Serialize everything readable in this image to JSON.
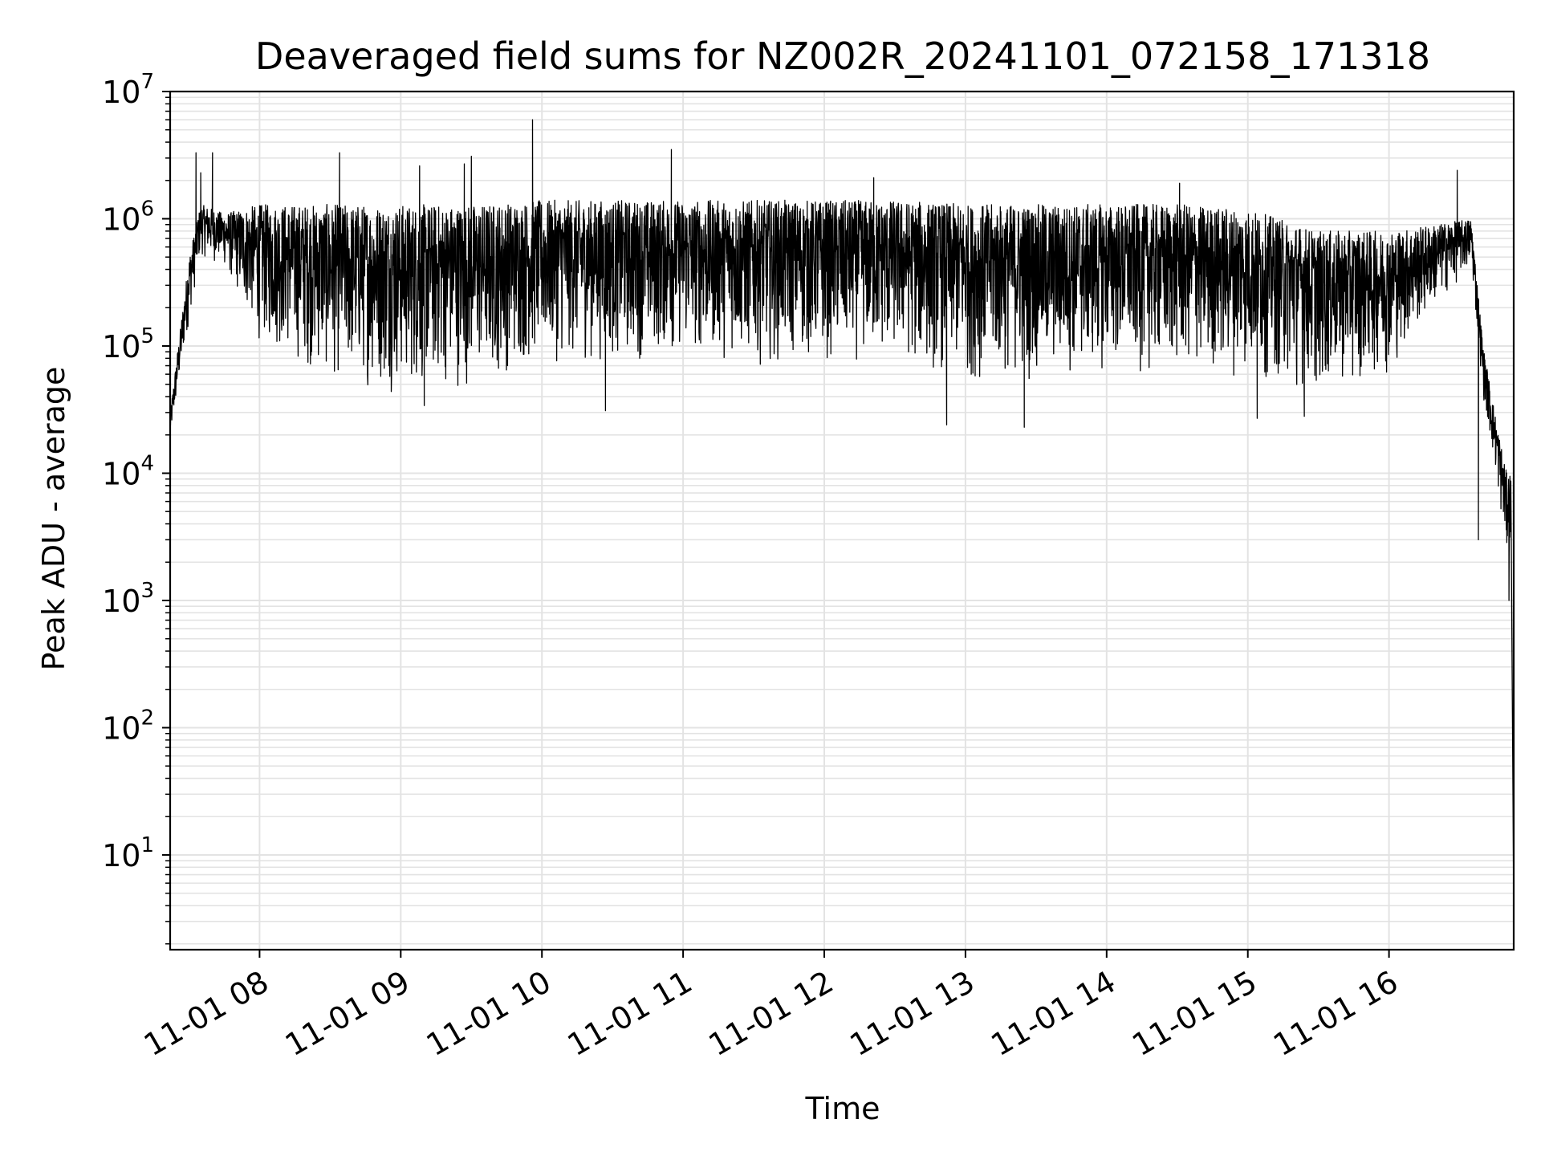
{
  "chart_data": {
    "type": "line",
    "title": "Deaveraged field sums for NZ002R_20241101_072158_171318",
    "xlabel": "Time",
    "ylabel": "Peak ADU - average",
    "yscale": "log",
    "ylim": [
      1.8,
      10000000
    ],
    "xlim": [
      "2024-11-01 07:22",
      "2024-11-01 16:53"
    ],
    "grid": true,
    "line_color": "#000000",
    "grid_color": "#e3e3e3",
    "x_ticks": [
      {
        "value": "2024-11-01 08:00",
        "label": "11-01 08"
      },
      {
        "value": "2024-11-01 09:00",
        "label": "11-01 09"
      },
      {
        "value": "2024-11-01 10:00",
        "label": "11-01 10"
      },
      {
        "value": "2024-11-01 11:00",
        "label": "11-01 11"
      },
      {
        "value": "2024-11-01 12:00",
        "label": "11-01 12"
      },
      {
        "value": "2024-11-01 13:00",
        "label": "11-01 13"
      },
      {
        "value": "2024-11-01 14:00",
        "label": "11-01 14"
      },
      {
        "value": "2024-11-01 15:00",
        "label": "11-01 15"
      },
      {
        "value": "2024-11-01 16:00",
        "label": "11-01 16"
      }
    ],
    "y_ticks": [
      {
        "value": 10,
        "base": "10",
        "exp": "1"
      },
      {
        "value": 100,
        "base": "10",
        "exp": "2"
      },
      {
        "value": 1000,
        "base": "10",
        "exp": "3"
      },
      {
        "value": 10000,
        "base": "10",
        "exp": "4"
      },
      {
        "value": 100000,
        "base": "10",
        "exp": "5"
      },
      {
        "value": 1000000,
        "base": "10",
        "exp": "6"
      },
      {
        "value": 10000000,
        "base": "10",
        "exp": "7"
      }
    ],
    "series": [
      {
        "envelope": [
          {
            "x": "2024-11-01 07:22",
            "low": 17000,
            "high": 30000
          },
          {
            "x": "2024-11-01 07:30",
            "low": 150000,
            "high": 500000
          },
          {
            "x": "2024-11-01 07:35",
            "low": 500000,
            "high": 1300000
          },
          {
            "x": "2024-11-01 07:45",
            "low": 400000,
            "high": 1100000
          },
          {
            "x": "2024-11-01 08:00",
            "low": 100000,
            "high": 1300000
          },
          {
            "x": "2024-11-01 08:30",
            "low": 50000,
            "high": 1300000
          },
          {
            "x": "2024-11-01 09:00",
            "low": 40000,
            "high": 1300000
          },
          {
            "x": "2024-11-01 09:30",
            "low": 45000,
            "high": 1300000
          },
          {
            "x": "2024-11-01 10:00",
            "low": 70000,
            "high": 1400000
          },
          {
            "x": "2024-11-01 10:30",
            "low": 70000,
            "high": 1400000
          },
          {
            "x": "2024-11-01 11:00",
            "low": 80000,
            "high": 1400000
          },
          {
            "x": "2024-11-01 11:30",
            "low": 70000,
            "high": 1400000
          },
          {
            "x": "2024-11-01 12:00",
            "low": 70000,
            "high": 1400000
          },
          {
            "x": "2024-11-01 12:30",
            "low": 70000,
            "high": 1400000
          },
          {
            "x": "2024-11-01 13:00",
            "low": 50000,
            "high": 1300000
          },
          {
            "x": "2024-11-01 13:30",
            "low": 50000,
            "high": 1300000
          },
          {
            "x": "2024-11-01 14:00",
            "low": 60000,
            "high": 1300000
          },
          {
            "x": "2024-11-01 14:30",
            "low": 55000,
            "high": 1300000
          },
          {
            "x": "2024-11-01 15:00",
            "low": 55000,
            "high": 1200000
          },
          {
            "x": "2024-11-01 15:30",
            "low": 40000,
            "high": 800000
          },
          {
            "x": "2024-11-01 16:00",
            "low": 60000,
            "high": 800000
          },
          {
            "x": "2024-11-01 16:20",
            "low": 200000,
            "high": 900000
          },
          {
            "x": "2024-11-01 16:35",
            "low": 400000,
            "high": 1000000
          },
          {
            "x": "2024-11-01 16:40",
            "low": 40000,
            "high": 100000
          },
          {
            "x": "2024-11-01 16:45",
            "low": 10000,
            "high": 30000
          },
          {
            "x": "2024-11-01 16:50",
            "low": 2000,
            "high": 10000
          }
        ],
        "spikes": [
          {
            "x": "2024-11-01 07:33",
            "y": 3300000
          },
          {
            "x": "2024-11-01 07:35",
            "y": 2300000
          },
          {
            "x": "2024-11-01 07:40",
            "y": 3300000
          },
          {
            "x": "2024-11-01 08:34",
            "y": 3300000
          },
          {
            "x": "2024-11-01 09:08",
            "y": 2600000
          },
          {
            "x": "2024-11-01 09:27",
            "y": 2700000
          },
          {
            "x": "2024-11-01 09:30",
            "y": 3100000
          },
          {
            "x": "2024-11-01 09:56",
            "y": 6000000
          },
          {
            "x": "2024-11-01 10:55",
            "y": 3500000
          },
          {
            "x": "2024-11-01 12:21",
            "y": 2100000
          },
          {
            "x": "2024-11-01 14:31",
            "y": 1900000
          },
          {
            "x": "2024-11-01 16:29",
            "y": 2400000
          }
        ],
        "dips": [
          {
            "x": "2024-11-01 09:10",
            "y": 34000
          },
          {
            "x": "2024-11-01 10:27",
            "y": 31000
          },
          {
            "x": "2024-11-01 12:52",
            "y": 24000
          },
          {
            "x": "2024-11-01 13:25",
            "y": 23000
          },
          {
            "x": "2024-11-01 15:04",
            "y": 27000
          },
          {
            "x": "2024-11-01 15:24",
            "y": 28000
          },
          {
            "x": "2024-11-01 16:38",
            "y": 3000
          },
          {
            "x": "2024-11-01 16:51",
            "y": 1000
          },
          {
            "x": "2024-11-01 16:53",
            "y": 3.8
          }
        ]
      }
    ]
  }
}
